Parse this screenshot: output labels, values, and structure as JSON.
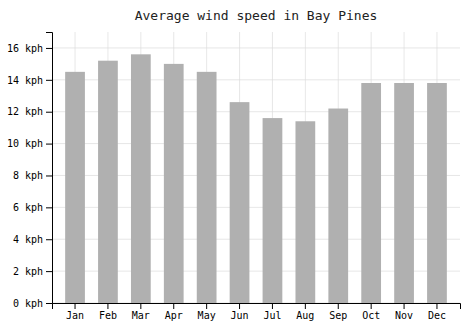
{
  "chart_data": {
    "type": "bar",
    "title": "Average wind speed in Bay Pines",
    "categories": [
      "Jan",
      "Feb",
      "Mar",
      "Apr",
      "May",
      "Jun",
      "Jul",
      "Aug",
      "Sep",
      "Oct",
      "Nov",
      "Dec"
    ],
    "values": [
      14.5,
      15.2,
      15.6,
      15.0,
      14.5,
      12.6,
      11.6,
      11.4,
      12.2,
      13.8,
      13.8,
      13.8
    ],
    "color": "#b0b0b0",
    "ylim": [
      0,
      17
    ],
    "yticks": [
      {
        "value": 0,
        "label": "0 kph"
      },
      {
        "value": 2,
        "label": "2 kph"
      },
      {
        "value": 4,
        "label": "4 kph"
      },
      {
        "value": 6,
        "label": "6 kph"
      },
      {
        "value": 8,
        "label": "8 kph"
      },
      {
        "value": 10,
        "label": "10 kph"
      },
      {
        "value": 12,
        "label": "12 kph"
      },
      {
        "value": 14,
        "label": "14 kph"
      },
      {
        "value": 16,
        "label": "16 kph"
      }
    ],
    "grid": true
  }
}
